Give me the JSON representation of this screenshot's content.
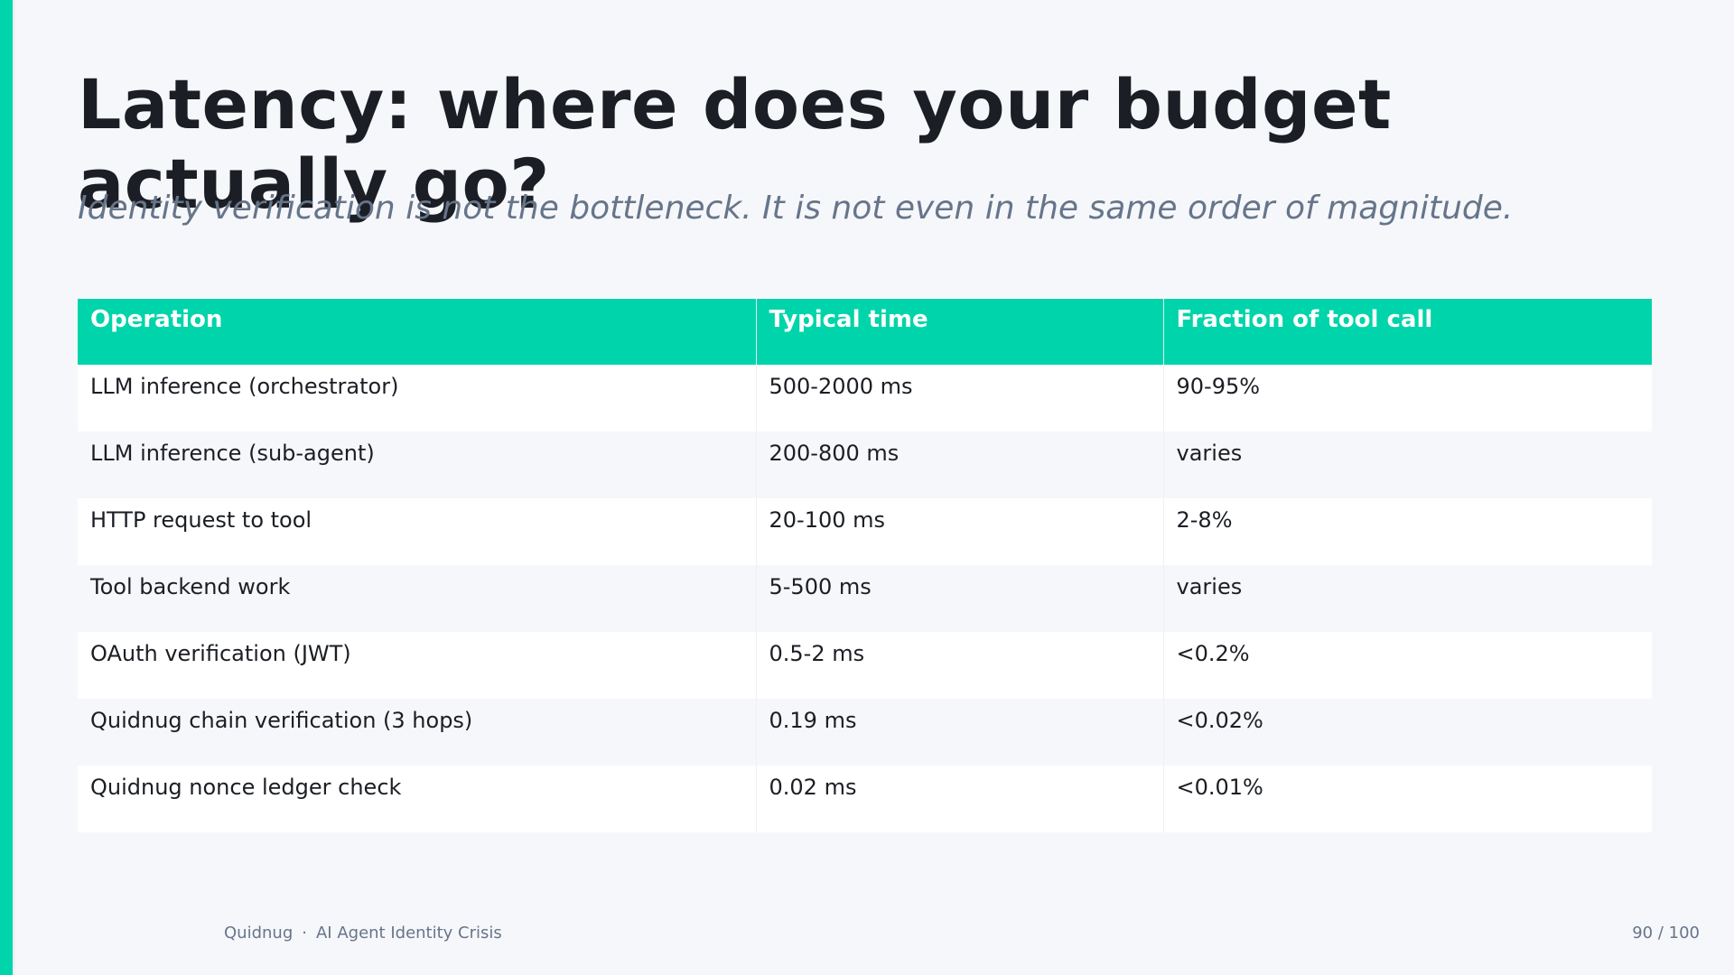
{
  "slide": {
    "title": "Latency: where does your budget actually go?",
    "subtitle": "Identity verification is not the bottleneck. It is not even in the same order of magnitude."
  },
  "table": {
    "headers": [
      "Operation",
      "Typical time",
      "Fraction of tool call"
    ],
    "rows": [
      [
        "LLM inference (orchestrator)",
        "500-2000 ms",
        "90-95%"
      ],
      [
        "LLM inference (sub-agent)",
        "200-800 ms",
        "varies"
      ],
      [
        "HTTP request to tool",
        "20-100 ms",
        "2-8%"
      ],
      [
        "Tool backend work",
        "5-500 ms",
        "varies"
      ],
      [
        "OAuth verification (JWT)",
        "0.5-2 ms",
        "<0.2%"
      ],
      [
        "Quidnug chain verification (3 hops)",
        "0.19 ms",
        "<0.02%"
      ],
      [
        "Quidnug nonce ledger check",
        "0.02 ms",
        "<0.01%"
      ]
    ]
  },
  "footer": {
    "brand": "Quidnug",
    "separator": "·",
    "deck_title": "AI Agent Identity Crisis",
    "page": "90 / 100"
  },
  "colors": {
    "accent": "#00d4aa",
    "background": "#f6f7fa",
    "title_text": "#1b1e24",
    "muted_text": "#66758a"
  }
}
